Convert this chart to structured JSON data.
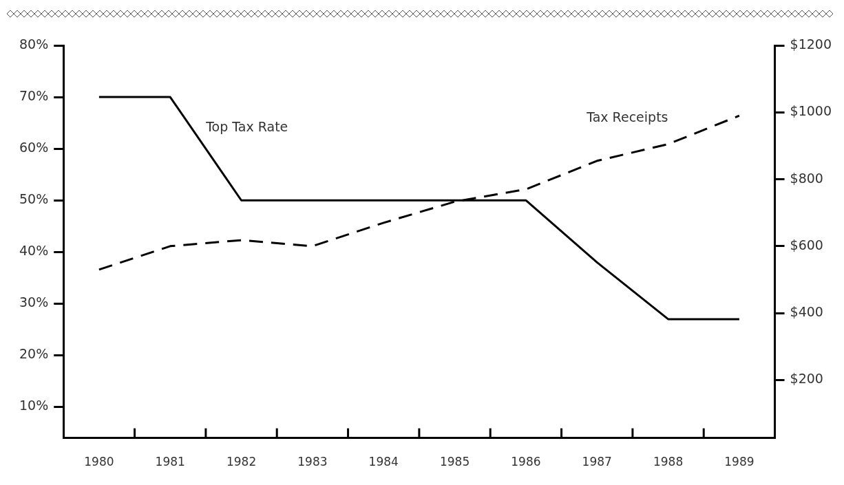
{
  "chart_data": {
    "type": "line",
    "categories": [
      "1980",
      "1981",
      "1982",
      "1983",
      "1984",
      "1985",
      "1986",
      "1987",
      "1988",
      "1989"
    ],
    "series": [
      {
        "name": "Top Tax Rate",
        "color": "#000000",
        "line_style": "solid",
        "values": [
          70,
          70,
          50,
          50,
          50,
          50,
          50,
          38,
          27,
          27
        ]
      },
      {
        "name": "Tax Receipts",
        "color": "#000000",
        "line_style": "dashed",
        "axis": "y2",
        "values": [
          530,
          600,
          618,
          600,
          670,
          733,
          770,
          855,
          905,
          990
        ]
      }
    ],
    "ylim": [
      4,
      80
    ],
    "yticks": [
      {
        "value": 10,
        "label": "10%"
      },
      {
        "value": 20,
        "label": "20%"
      },
      {
        "value": 30,
        "label": "30%"
      },
      {
        "value": 40,
        "label": "40%"
      },
      {
        "value": 50,
        "label": "50%"
      },
      {
        "value": 60,
        "label": "60%"
      },
      {
        "value": 70,
        "label": "70%"
      },
      {
        "value": 80,
        "label": "80%"
      }
    ],
    "y2lim": [
      27,
      1200
    ],
    "y2ticks": [
      {
        "value": 200,
        "label": "$200"
      },
      {
        "value": 400,
        "label": "$400"
      },
      {
        "value": 600,
        "label": "$600"
      },
      {
        "value": 800,
        "label": "$800"
      },
      {
        "value": 1000,
        "label": "$1000"
      },
      {
        "value": 1200,
        "label": "$1200"
      }
    ],
    "grid": false,
    "legend": false,
    "marker": "none"
  }
}
